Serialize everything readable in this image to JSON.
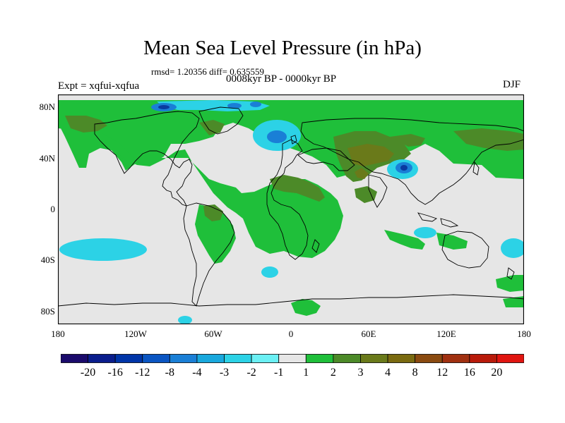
{
  "title": "Mean Sea Level Pressure (in hPa)",
  "stats": "rmsd= 1.20356 diff= 0.635559",
  "period": "0008kyr BP - 0000kyr BP",
  "experiment": "Expt = xqfui-xqfua",
  "season": "DJF",
  "lat_ticks": [
    {
      "label": "80N",
      "lat": 80
    },
    {
      "label": "40N",
      "lat": 40
    },
    {
      "label": "0",
      "lat": 0
    },
    {
      "label": "40S",
      "lat": -40
    },
    {
      "label": "80S",
      "lat": -80
    }
  ],
  "lon_ticks": [
    {
      "label": "180",
      "lon": -180
    },
    {
      "label": "120W",
      "lon": -120
    },
    {
      "label": "60W",
      "lon": -60
    },
    {
      "label": "0",
      "lon": 0
    },
    {
      "label": "60E",
      "lon": 60
    },
    {
      "label": "120E",
      "lon": 120
    },
    {
      "label": "180",
      "lon": 180
    }
  ],
  "colorbar": {
    "colors": [
      "#1a0a6b",
      "#0a1d8c",
      "#0035a8",
      "#0a55c2",
      "#1a7fd6",
      "#19a8dd",
      "#2cd2e6",
      "#6bf0f4",
      "#e6e6e6",
      "#1fbf3a",
      "#4c8a28",
      "#6a7a1a",
      "#7a6a10",
      "#8a4a10",
      "#a03010",
      "#b81a0a",
      "#e01510"
    ],
    "labels": [
      "-20",
      "-16",
      "-12",
      "-8",
      "-4",
      "-3",
      "-2",
      "-1",
      "1",
      "2",
      "3",
      "4",
      "8",
      "12",
      "16",
      "20"
    ]
  },
  "colors": {
    "neutral": "#e6e6e6",
    "green": "#1fbf3a",
    "dark_green": "#4c8a28",
    "olive": "#6a7a1a",
    "cyan": "#2cd2e6",
    "blue": "#1a7fd6",
    "dark_blue": "#0a3aa0"
  }
}
